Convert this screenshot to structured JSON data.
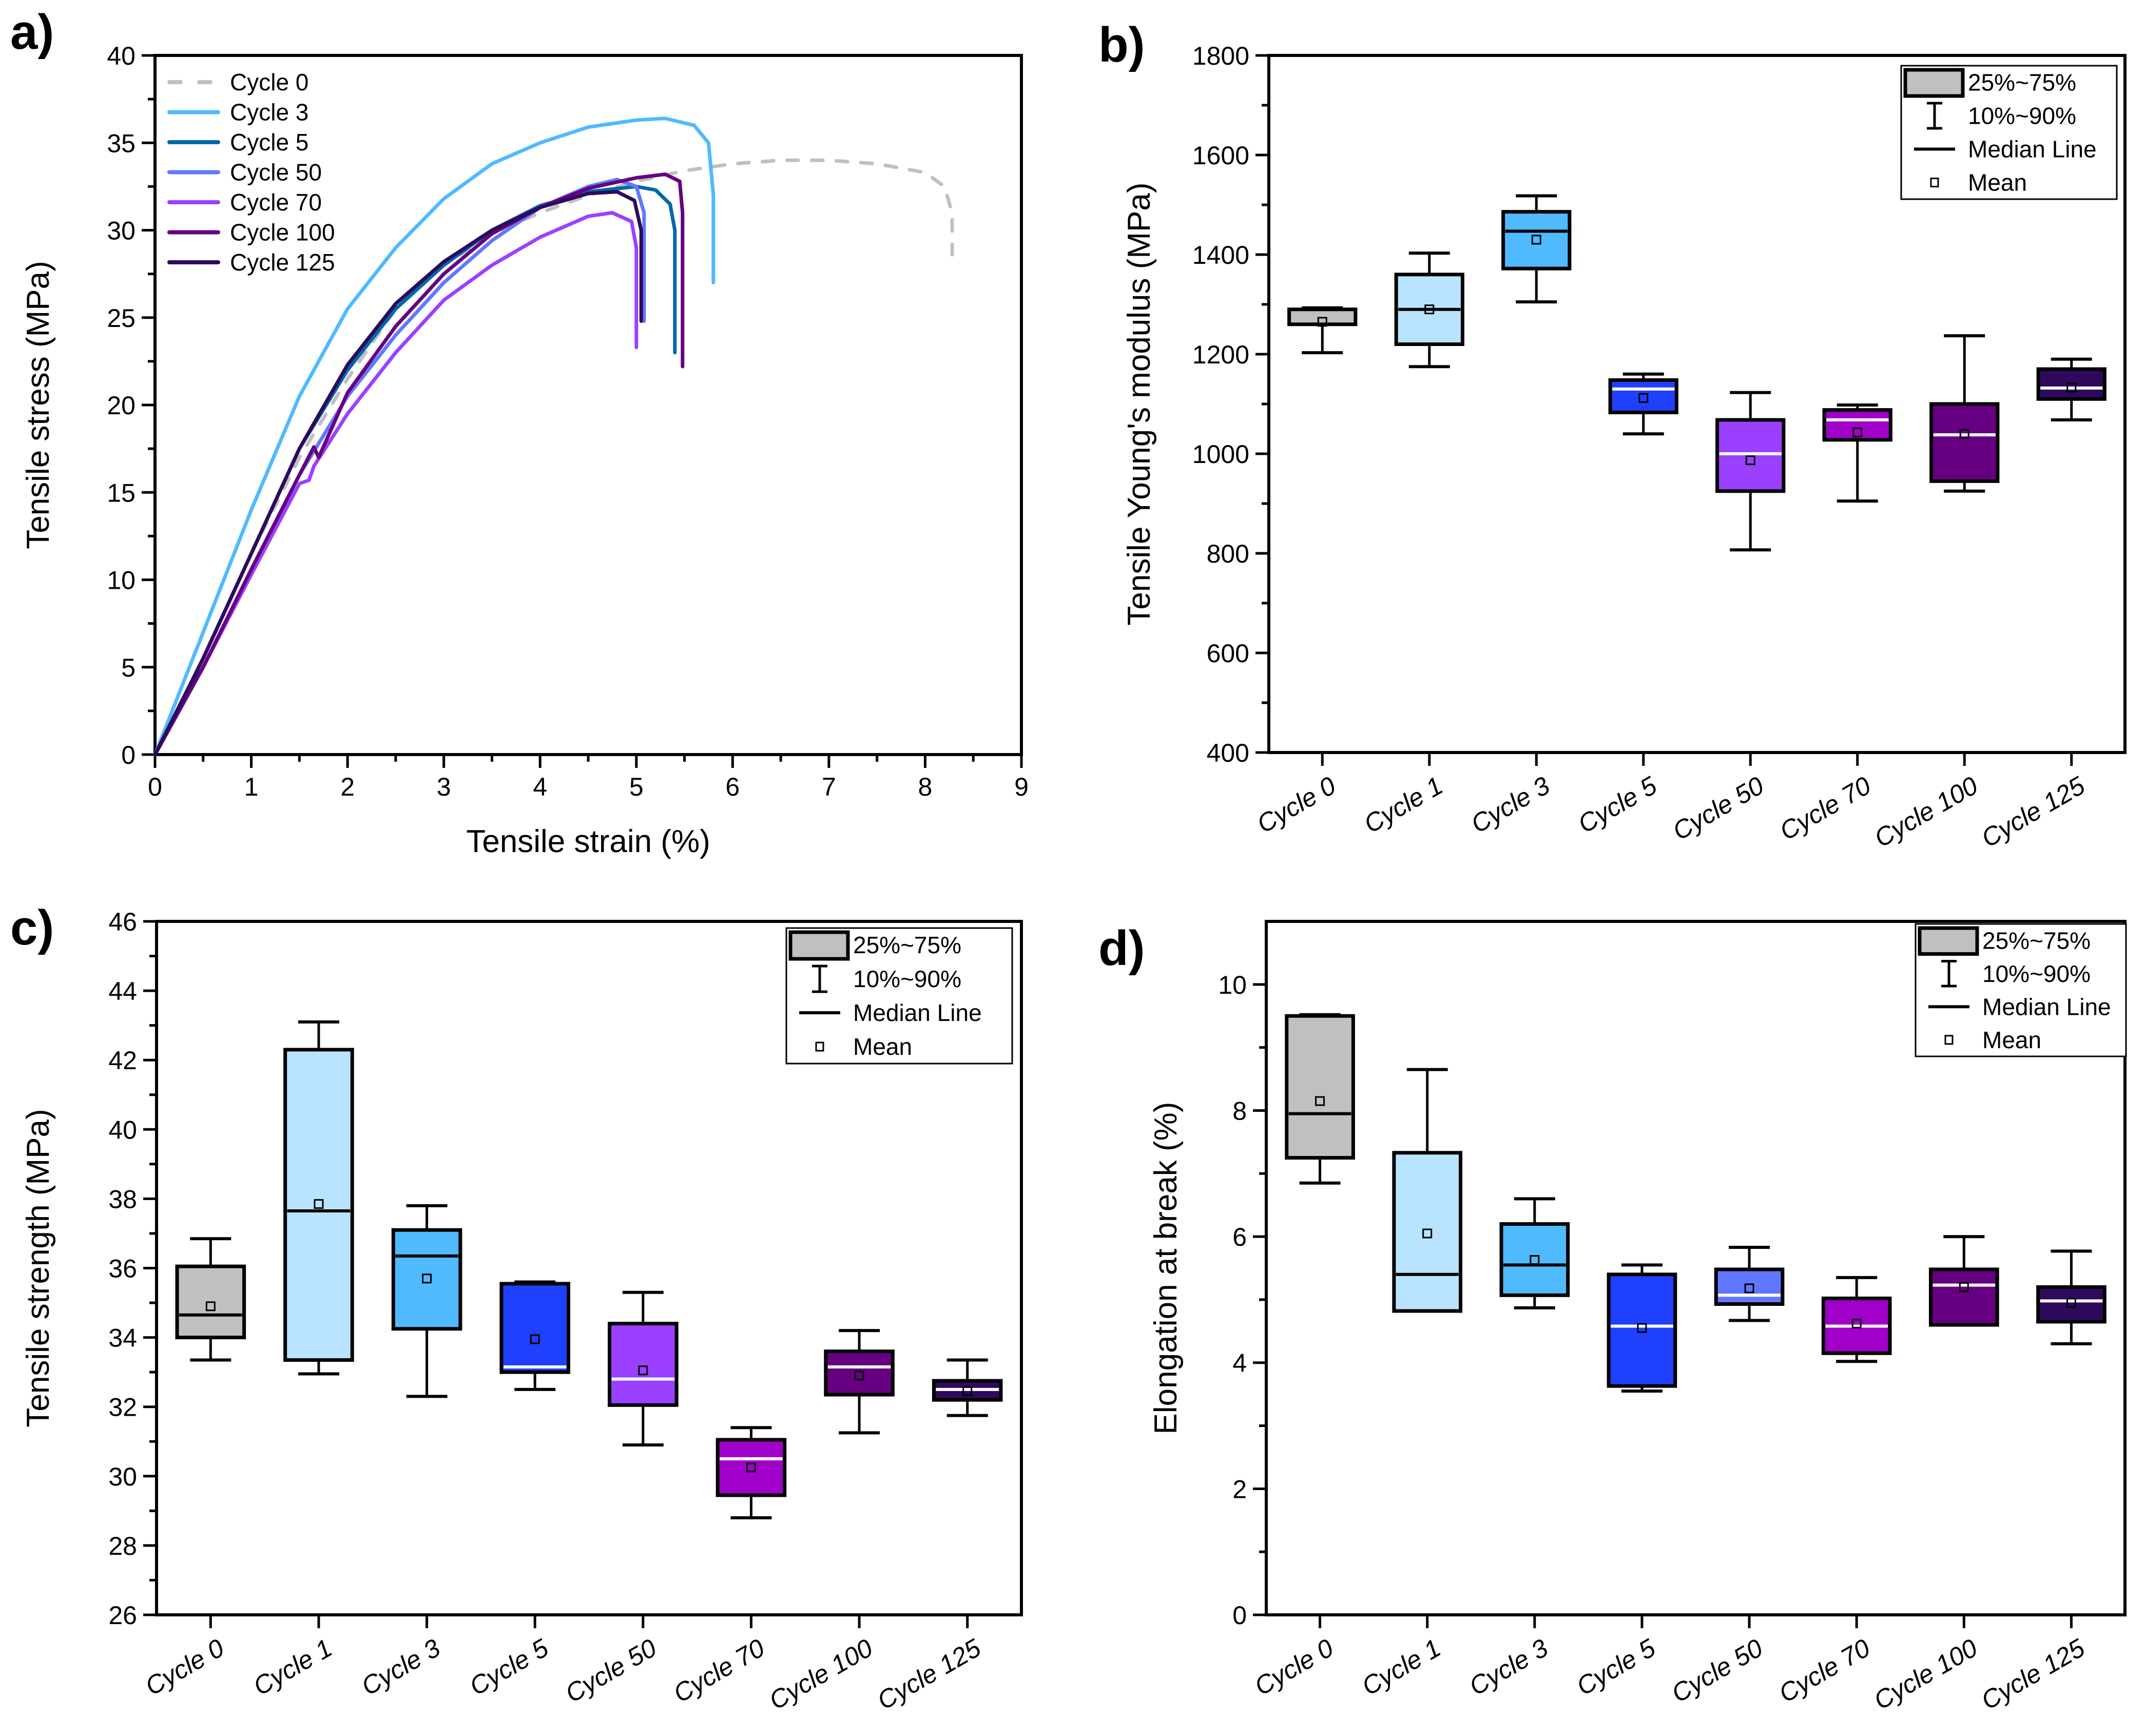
{
  "chart_data": [
    {
      "id": "a",
      "panel_label": "a)",
      "type": "line",
      "title": "",
      "xlabel": "Tensile strain (%)",
      "ylabel": "Tensile stress (MPa)",
      "xlim": [
        0,
        9
      ],
      "ylim": [
        0,
        40
      ],
      "xticks": [
        0,
        1,
        2,
        3,
        4,
        5,
        6,
        7,
        8,
        9
      ],
      "yticks": [
        0,
        5,
        10,
        15,
        20,
        25,
        30,
        35,
        40
      ],
      "grid": false,
      "legend_position": "top-left",
      "series": [
        {
          "name": "Cycle 0",
          "color": "#c0c0c0",
          "dashed": true,
          "x": [
            0,
            0.5,
            1,
            1.5,
            2,
            2.5,
            3,
            3.5,
            4,
            4.5,
            5,
            5.5,
            6,
            6.5,
            7,
            7.5,
            8,
            8.2,
            8.28,
            8.28
          ],
          "y": [
            0,
            5.5,
            11.5,
            17,
            21.5,
            25.5,
            28,
            29.8,
            31,
            32,
            32.8,
            33.4,
            33.8,
            34,
            34,
            33.8,
            33.3,
            32.5,
            31,
            28.6
          ]
        },
        {
          "name": "Cycle 3",
          "color": "#4fbaff",
          "dashed": false,
          "x": [
            0,
            0.5,
            1,
            1.5,
            2,
            2.5,
            3,
            3.5,
            4,
            4.5,
            5,
            5.3,
            5.6,
            5.75,
            5.8,
            5.8
          ],
          "y": [
            0,
            7,
            14,
            20.5,
            25.5,
            29,
            31.8,
            33.8,
            35,
            35.9,
            36.3,
            36.4,
            36,
            35,
            32,
            27
          ]
        },
        {
          "name": "Cycle 5",
          "color": "#0068a8",
          "dashed": false,
          "x": [
            0,
            0.5,
            1,
            1.5,
            2,
            2.5,
            3,
            3.5,
            4,
            4.5,
            5,
            5.2,
            5.35,
            5.4,
            5.4
          ],
          "y": [
            0,
            5.5,
            11.5,
            17.5,
            22,
            25.5,
            28,
            30,
            31.4,
            32.2,
            32.5,
            32.3,
            31.5,
            30,
            23
          ]
        },
        {
          "name": "Cycle 50",
          "color": "#6078ff",
          "dashed": false,
          "x": [
            0,
            0.5,
            1,
            1.5,
            2,
            2.5,
            3,
            3.5,
            4,
            4.5,
            4.8,
            5,
            5.08,
            5.08
          ],
          "y": [
            0,
            5,
            10.5,
            16,
            20.5,
            24,
            27,
            29.4,
            31.3,
            32.5,
            32.9,
            32.5,
            31,
            24.8
          ]
        },
        {
          "name": "Cycle 70",
          "color": "#9b40ff",
          "dashed": false,
          "x": [
            0,
            0.5,
            1,
            1.5,
            1.6,
            1.65,
            2,
            2.5,
            3,
            3.5,
            4,
            4.5,
            4.75,
            4.95,
            5.0,
            5.0
          ],
          "y": [
            0,
            5,
            10.3,
            15.5,
            15.7,
            16.5,
            19.5,
            23,
            26,
            28,
            29.6,
            30.8,
            31,
            30.5,
            29,
            23.3
          ]
        },
        {
          "name": "Cycle 100",
          "color": "#660080",
          "dashed": false,
          "x": [
            0,
            0.5,
            1,
            1.5,
            1.65,
            1.7,
            2,
            2.5,
            3,
            3.5,
            4,
            4.5,
            5,
            5.3,
            5.45,
            5.48,
            5.48
          ],
          "y": [
            0,
            5,
            10.6,
            16,
            17.6,
            17,
            20.7,
            24.5,
            27.5,
            29.8,
            31.3,
            32.4,
            33,
            33.2,
            32.8,
            31,
            22.2
          ]
        },
        {
          "name": "Cycle 125",
          "color": "#2e0a5e",
          "dashed": false,
          "x": [
            0,
            0.5,
            1,
            1.5,
            2,
            2.5,
            3,
            3.5,
            4,
            4.5,
            4.8,
            4.98,
            5.05,
            5.05
          ],
          "y": [
            0,
            5.5,
            11.5,
            17.5,
            22.3,
            25.8,
            28.2,
            30,
            31.3,
            32.1,
            32.2,
            31.7,
            30,
            24.8
          ]
        }
      ]
    },
    {
      "id": "b",
      "panel_label": "b)",
      "type": "box",
      "title": "",
      "xlabel": "",
      "ylabel": "Tensile Young's modulus (MPa)",
      "ylim": [
        400,
        1800
      ],
      "yticks": [
        400,
        600,
        800,
        1000,
        1200,
        1400,
        1600,
        1800
      ],
      "grid": false,
      "legend_position": "top-right",
      "categories": [
        "Cycle 0",
        "Cycle 1",
        "Cycle 3",
        "Cycle 5",
        "Cycle 50",
        "Cycle 70",
        "Cycle 100",
        "Cycle 125"
      ],
      "colors": [
        "#c0c0c0",
        "#b8e4ff",
        "#50baff",
        "#2040ff",
        "#9b40ff",
        "#a000c8",
        "#660080",
        "#2e0a5e"
      ],
      "median_colors": [
        "#000000",
        "#000000",
        "#000000",
        "#ffffff",
        "#ffffff",
        "#ffffff",
        "#ffffff",
        "#ffffff"
      ],
      "boxes": [
        {
          "p10": 1203,
          "q1": 1260,
          "median": 1260,
          "q3": 1290,
          "p90": 1293,
          "mean": 1265
        },
        {
          "p10": 1175,
          "q1": 1220,
          "median": 1290,
          "q3": 1360,
          "p90": 1403,
          "mean": 1290
        },
        {
          "p10": 1305,
          "q1": 1372,
          "median": 1447,
          "q3": 1486,
          "p90": 1518,
          "mean": 1430
        },
        {
          "p10": 1040,
          "q1": 1083,
          "median": 1130,
          "q3": 1148,
          "p90": 1160,
          "mean": 1112
        },
        {
          "p10": 807,
          "q1": 925,
          "median": 1000,
          "q3": 1068,
          "p90": 1123,
          "mean": 987
        },
        {
          "p10": 905,
          "q1": 1028,
          "median": 1068,
          "q3": 1088,
          "p90": 1098,
          "mean": 1043
        },
        {
          "p10": 925,
          "q1": 945,
          "median": 1038,
          "q3": 1100,
          "p90": 1237,
          "mean": 1040
        },
        {
          "p10": 1068,
          "q1": 1110,
          "median": 1132,
          "q3": 1170,
          "p90": 1190,
          "mean": 1133
        }
      ],
      "legend": [
        "25%~75%",
        "10%~90%",
        "Median Line",
        "Mean"
      ]
    },
    {
      "id": "c",
      "panel_label": "c)",
      "type": "box",
      "title": "",
      "xlabel": "",
      "ylabel": "Tensile strength (MPa)",
      "ylim": [
        26,
        46
      ],
      "yticks": [
        26,
        28,
        30,
        32,
        34,
        36,
        38,
        40,
        42,
        44,
        46
      ],
      "grid": false,
      "legend_position": "top-right",
      "categories": [
        "Cycle 0",
        "Cycle 1",
        "Cycle 3",
        "Cycle 5",
        "Cycle 50",
        "Cycle 70",
        "Cycle 100",
        "Cycle 125"
      ],
      "colors": [
        "#c0c0c0",
        "#b8e4ff",
        "#50baff",
        "#2040ff",
        "#9b40ff",
        "#a000c8",
        "#660080",
        "#2e0a5e"
      ],
      "median_colors": [
        "#000000",
        "#000000",
        "#000000",
        "#ffffff",
        "#ffffff",
        "#ffffff",
        "#ffffff",
        "#ffffff"
      ],
      "boxes": [
        {
          "p10": 33.35,
          "q1": 34.0,
          "median": 34.65,
          "q3": 36.05,
          "p90": 36.85,
          "mean": 34.9
        },
        {
          "p10": 32.95,
          "q1": 33.35,
          "median": 37.65,
          "q3": 42.3,
          "p90": 43.1,
          "mean": 37.85
        },
        {
          "p10": 32.3,
          "q1": 34.25,
          "median": 36.35,
          "q3": 37.1,
          "p90": 37.8,
          "mean": 35.7
        },
        {
          "p10": 32.5,
          "q1": 33.0,
          "median": 33.15,
          "q3": 35.55,
          "p90": 35.6,
          "mean": 33.95
        },
        {
          "p10": 30.9,
          "q1": 32.05,
          "median": 32.8,
          "q3": 34.4,
          "p90": 35.3,
          "mean": 33.05
        },
        {
          "p10": 28.8,
          "q1": 29.45,
          "median": 30.5,
          "q3": 31.05,
          "p90": 31.4,
          "mean": 30.25
        },
        {
          "p10": 31.25,
          "q1": 32.35,
          "median": 33.15,
          "q3": 33.6,
          "p90": 34.2,
          "mean": 32.9
        },
        {
          "p10": 31.75,
          "q1": 32.2,
          "median": 32.5,
          "q3": 32.75,
          "p90": 33.35,
          "mean": 32.45
        }
      ],
      "legend": [
        "25%~75%",
        "10%~90%",
        "Median Line",
        "Mean"
      ]
    },
    {
      "id": "d",
      "panel_label": "d)",
      "type": "box",
      "title": "",
      "xlabel": "",
      "ylabel": "Elongation at break (%)",
      "ylim": [
        0,
        11
      ],
      "yticks": [
        0,
        2,
        4,
        6,
        8,
        10
      ],
      "grid": false,
      "legend_position": "top-right",
      "categories": [
        "Cycle 0",
        "Cycle 1",
        "Cycle 3",
        "Cycle 5",
        "Cycle 50",
        "Cycle 70",
        "Cycle 100",
        "Cycle 125"
      ],
      "colors": [
        "#c0c0c0",
        "#b8e4ff",
        "#50baff",
        "#2040ff",
        "#6078ff",
        "#a000c8",
        "#660080",
        "#2e0a5e"
      ],
      "median_colors": [
        "#000000",
        "#000000",
        "#000000",
        "#ffffff",
        "#ffffff",
        "#ffffff",
        "#ffffff",
        "#ffffff"
      ],
      "boxes": [
        {
          "p10": 6.85,
          "q1": 7.25,
          "median": 7.95,
          "q3": 9.5,
          "p90": 9.52,
          "mean": 8.15
        },
        {
          "p10": 4.82,
          "q1": 4.82,
          "median": 5.4,
          "q3": 7.33,
          "p90": 8.65,
          "mean": 6.05
        },
        {
          "p10": 4.87,
          "q1": 5.07,
          "median": 5.55,
          "q3": 6.2,
          "p90": 6.6,
          "mean": 5.63
        },
        {
          "p10": 3.55,
          "q1": 3.63,
          "median": 4.58,
          "q3": 5.4,
          "p90": 5.55,
          "mean": 4.55
        },
        {
          "p10": 4.67,
          "q1": 4.93,
          "median": 5.07,
          "q3": 5.48,
          "p90": 5.83,
          "mean": 5.18
        },
        {
          "p10": 4.02,
          "q1": 4.15,
          "median": 4.58,
          "q3": 5.02,
          "p90": 5.35,
          "mean": 4.62
        },
        {
          "p10": 4.6,
          "q1": 4.6,
          "median": 5.23,
          "q3": 5.48,
          "p90": 6.0,
          "mean": 5.2
        },
        {
          "p10": 4.3,
          "q1": 4.65,
          "median": 4.98,
          "q3": 5.2,
          "p90": 5.77,
          "mean": 4.95
        }
      ],
      "legend": [
        "25%~75%",
        "10%~90%",
        "Median Line",
        "Mean"
      ]
    }
  ]
}
